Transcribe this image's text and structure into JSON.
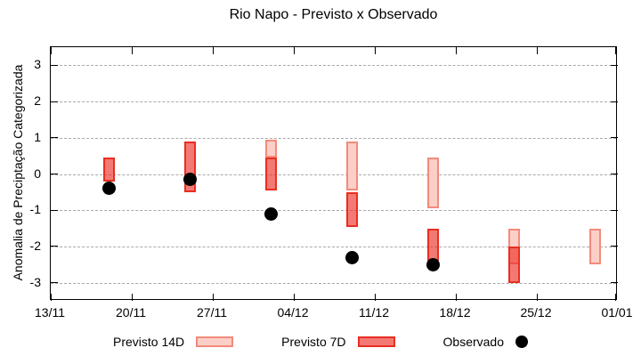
{
  "chart_data": {
    "type": "bar",
    "subtype": "range-bars-with-scatter-overlay",
    "title": "Rio Napo - Previsto x Observado",
    "ylabel": "Anomalia de Preciptação Categorizada",
    "xlabel": "",
    "ylim": [
      -3.5,
      3.5
    ],
    "x_day_range": [
      0,
      49
    ],
    "grid": "horizontal-dashed",
    "legend_position": "bottom",
    "x_ticks": [
      {
        "day": 0,
        "label": "13/11"
      },
      {
        "day": 7,
        "label": "20/11"
      },
      {
        "day": 14,
        "label": "27/11"
      },
      {
        "day": 21,
        "label": "04/12"
      },
      {
        "day": 28,
        "label": "11/12"
      },
      {
        "day": 35,
        "label": "18/12"
      },
      {
        "day": 42,
        "label": "25/12"
      },
      {
        "day": 49,
        "label": "01/01"
      }
    ],
    "y_ticks": [
      3,
      2,
      1,
      0,
      -1,
      -2,
      -3
    ],
    "colors": {
      "previsto_14d_fill": "#fbcfc8",
      "previsto_14d_border": "#f28b7b",
      "previsto_7d_fill": "rgba(235,40,30,0.62)",
      "previsto_7d_border": "#e92e22",
      "observado": "#000000",
      "gridline": "#a9a9a9"
    },
    "series": [
      {
        "name": "Previsto 14D",
        "type": "range-bar",
        "points": [
          {
            "date": "02/12",
            "day": 19,
            "low": 0.45,
            "high": 0.95
          },
          {
            "date": "09/12",
            "day": 26,
            "low": -0.45,
            "high": 0.9
          },
          {
            "date": "16/12",
            "day": 33,
            "low": -0.95,
            "high": 0.45
          },
          {
            "date": "23/12",
            "day": 40,
            "low": -2.5,
            "high": -1.5
          },
          {
            "date": "30/12",
            "day": 47,
            "low": -2.5,
            "high": -1.5
          }
        ]
      },
      {
        "name": "Previsto 7D",
        "type": "range-bar",
        "points": [
          {
            "date": "18/11",
            "day": 5,
            "low": -0.2,
            "high": 0.45
          },
          {
            "date": "25/11",
            "day": 12,
            "low": -0.5,
            "high": 0.9
          },
          {
            "date": "02/12",
            "day": 19,
            "low": -0.45,
            "high": 0.45
          },
          {
            "date": "09/12",
            "day": 26,
            "low": -1.45,
            "high": -0.5
          },
          {
            "date": "16/12",
            "day": 33,
            "low": -2.4,
            "high": -1.5
          },
          {
            "date": "23/12",
            "day": 40,
            "low": -3.0,
            "high": -2.0
          }
        ]
      },
      {
        "name": "Observado",
        "type": "scatter",
        "points": [
          {
            "date": "18/11",
            "day": 5,
            "value": -0.4
          },
          {
            "date": "25/11",
            "day": 12,
            "value": -0.15
          },
          {
            "date": "02/12",
            "day": 19,
            "value": -1.1
          },
          {
            "date": "09/12",
            "day": 26,
            "value": -2.3
          },
          {
            "date": "16/12",
            "day": 33,
            "value": -2.5
          }
        ]
      }
    ]
  }
}
